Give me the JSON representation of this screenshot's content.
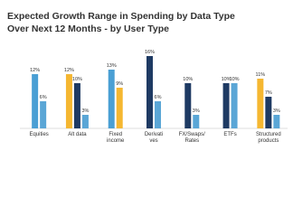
{
  "chart_data": {
    "type": "bar",
    "title": [
      "Expected Growth Range in Spending by Data Type",
      "Over Next 12 Months - by User Type"
    ],
    "categories": [
      [
        "Equities"
      ],
      [
        "Alt data"
      ],
      [
        "Fixed",
        "income"
      ],
      [
        "Derivati",
        "ves"
      ],
      [
        "FX/Swaps/",
        "Rates"
      ],
      [
        "ETFs"
      ],
      [
        "Structured",
        "products"
      ]
    ],
    "series": [
      {
        "color": "#4a9fd4",
        "values": [
          12,
          null,
          13,
          null,
          null,
          null,
          null
        ],
        "value_labels": [
          "12%",
          null,
          "13%",
          null,
          null,
          null,
          null
        ]
      },
      {
        "color": "#f5b731",
        "values": [
          null,
          12,
          9,
          null,
          null,
          null,
          11
        ],
        "value_labels": [
          null,
          "12%",
          "9%",
          null,
          null,
          null,
          "11%"
        ]
      },
      {
        "color": "#1e3a63",
        "values": [
          null,
          10,
          null,
          16,
          10,
          10,
          7
        ],
        "value_labels": [
          null,
          "10%",
          null,
          "16%",
          "10%",
          "10%",
          "7%"
        ]
      },
      {
        "color": "#5aa6d6",
        "values": [
          6,
          3,
          null,
          6,
          3,
          10,
          3
        ],
        "value_labels": [
          "6%",
          "3%",
          null,
          "6%",
          "3%",
          "10%",
          "3%"
        ]
      }
    ]
  }
}
